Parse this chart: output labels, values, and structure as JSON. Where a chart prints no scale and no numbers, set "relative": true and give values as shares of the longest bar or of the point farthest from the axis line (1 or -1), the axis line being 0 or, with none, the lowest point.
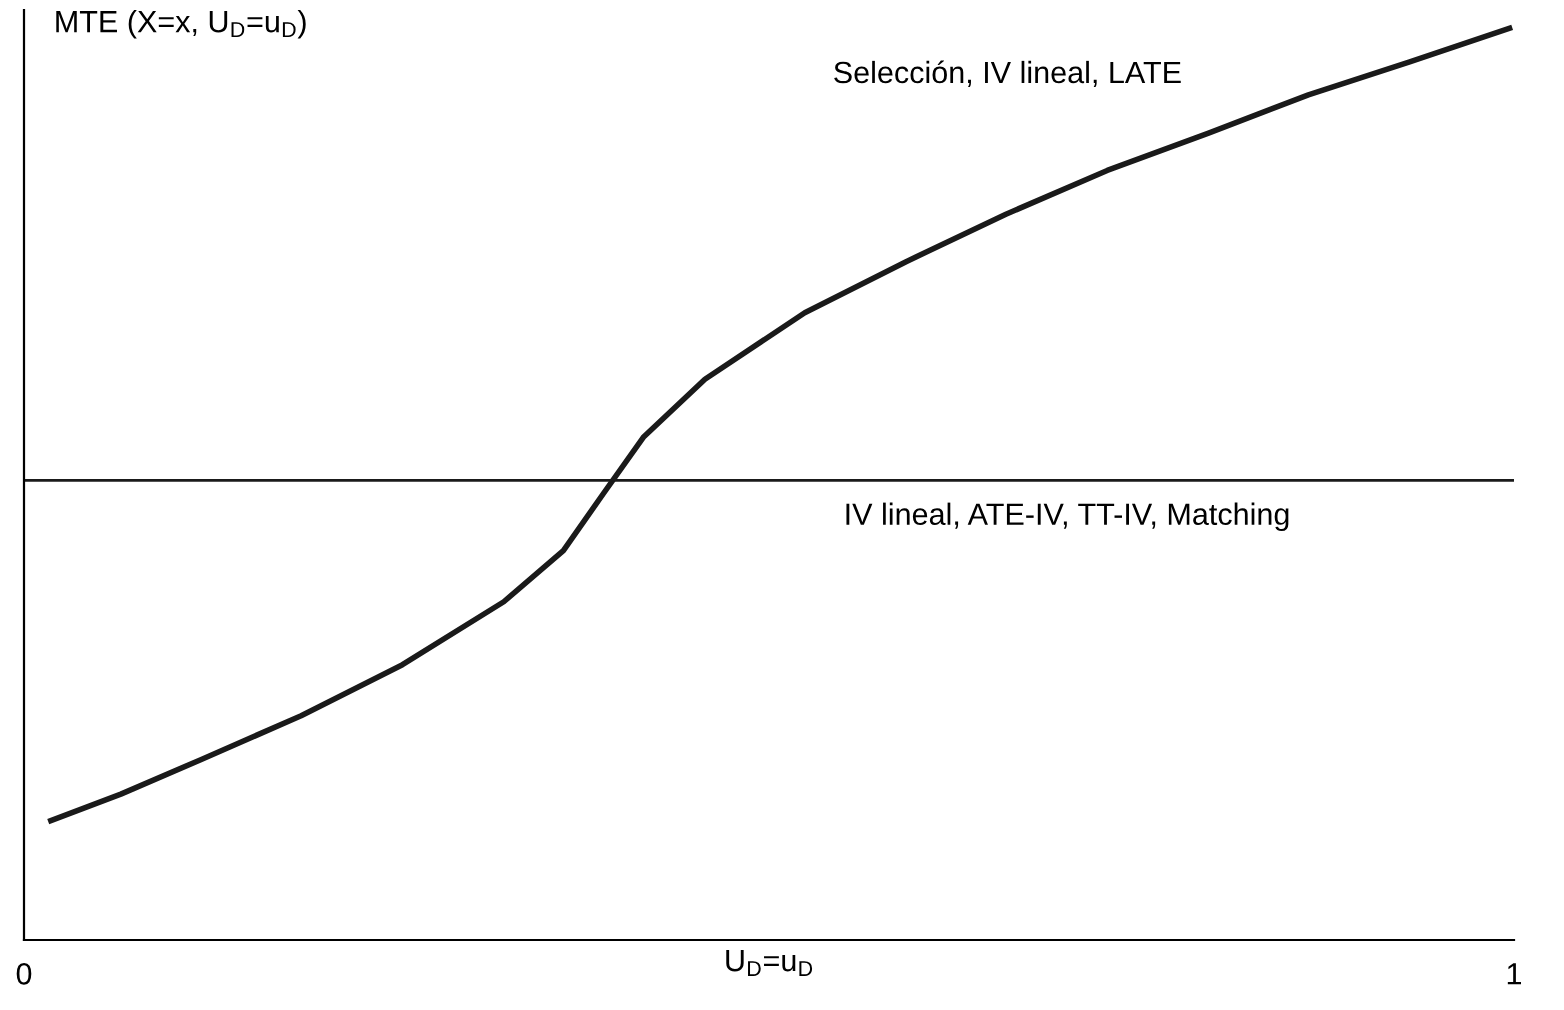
{
  "chart_data": {
    "type": "line",
    "relative": true,
    "ylabel": "MTE (X=x, U$_{D}$=u$_{D}$)",
    "xlabel": "U$_{D}$=u$_{D}$",
    "xlim": [
      0,
      1
    ],
    "xticks": [
      0,
      1
    ],
    "tick_labels": "x",
    "grid": false,
    "legend": false,
    "marker": "none",
    "line_style": "solid",
    "series": [
      {
        "color": "#1a1a1a",
        "x": [
          0.018,
          0.065,
          0.119,
          0.186,
          0.254,
          0.322,
          0.362,
          0.389,
          0.416,
          0.457,
          0.524,
          0.592,
          0.659,
          0.727,
          0.795,
          0.862,
          0.93,
          0.997
        ],
        "values": [
          0.131,
          0.16,
          0.198,
          0.246,
          0.302,
          0.371,
          0.427,
          0.49,
          0.552,
          0.615,
          0.688,
          0.744,
          0.796,
          0.844,
          0.885,
          0.927,
          0.963,
          1.0
        ]
      },
      {
        "color": "#1a1a1a",
        "x": [
          0,
          1
        ],
        "values": [
          0.504,
          0.504
        ]
      }
    ],
    "annotations": [
      "Selección, IV lineal, LATE",
      "IV lineal, ATE-IV, TT-IV, Matching"
    ]
  }
}
